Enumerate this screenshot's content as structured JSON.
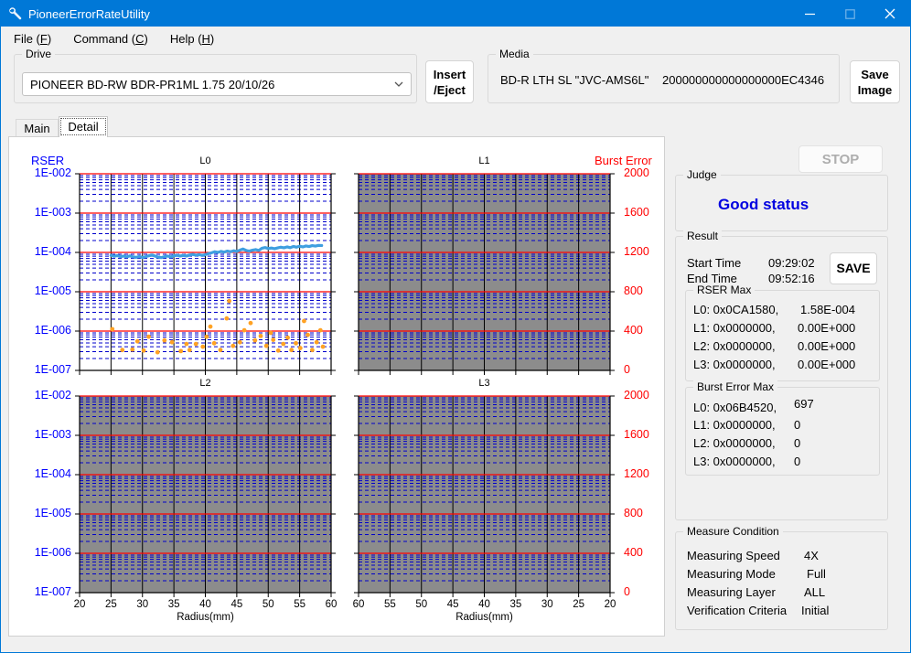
{
  "window": {
    "title": "PioneerErrorRateUtility"
  },
  "menu": {
    "items": [
      {
        "pre": "File (",
        "key": "F",
        "post": ")"
      },
      {
        "pre": "Command (",
        "key": "C",
        "post": ")"
      },
      {
        "pre": "Help (",
        "key": "H",
        "post": ")"
      }
    ]
  },
  "drive": {
    "label": "Drive",
    "selected": "PIONEER BD-RW BDR-PR1ML 1.75 20/10/26"
  },
  "insert_eject_button": {
    "line1": "Insert",
    "line2": "/Eject"
  },
  "media": {
    "label": "Media",
    "type": "BD-R LTH SL \"JVC-AMS6L\"",
    "id": "200000000000000000EC4346"
  },
  "save_image_button": {
    "line1": "Save",
    "line2": "Image"
  },
  "tabs": {
    "main": "Main",
    "detail": "Detail"
  },
  "stop_button": "STOP",
  "judge": {
    "label": "Judge",
    "status": "Good status",
    "status_color": "#0000e0"
  },
  "result": {
    "label": "Result",
    "start_time_label": "Start Time",
    "start_time": "09:29:02",
    "end_time_label": "End Time",
    "end_time": "09:52:16",
    "save_button": "SAVE",
    "rser_max": {
      "label": "RSER Max",
      "rows": [
        {
          "addr": "L0: 0x0CA1580,",
          "val": "1.58E-004"
        },
        {
          "addr": "L1: 0x0000000,",
          "val": "0.00E+000"
        },
        {
          "addr": "L2: 0x0000000,",
          "val": "0.00E+000"
        },
        {
          "addr": "L3: 0x0000000,",
          "val": "0.00E+000"
        }
      ]
    },
    "burst_error_max": {
      "label": "Burst Error Max",
      "rows": [
        {
          "addr": "L0: 0x06B4520,",
          "val": "697"
        },
        {
          "addr": "L1: 0x0000000,",
          "val": "0"
        },
        {
          "addr": "L2: 0x0000000,",
          "val": "0"
        },
        {
          "addr": "L3: 0x0000000,",
          "val": "0"
        }
      ]
    }
  },
  "measure_condition": {
    "label": "Measure Condition",
    "rows": [
      {
        "label": "Measuring Speed",
        "value": "4X"
      },
      {
        "label": "Measuring Mode",
        "value": "Full"
      },
      {
        "label": "Measuring Layer",
        "value": "ALL"
      },
      {
        "label": "Verification Criteria",
        "value": "Initial"
      }
    ]
  },
  "chart_data": {
    "type": "line",
    "grid": {
      "y_label": "RSER",
      "y2_label": "Burst Error",
      "x_label": "Radius(mm)",
      "y_ticks": [
        "1E-002",
        "1E-003",
        "1E-004",
        "1E-005",
        "1E-006",
        "1E-007"
      ],
      "y2_ticks": [
        "2000",
        "1600",
        "1200",
        "800",
        "400",
        "0"
      ],
      "x_ticks_forward": [
        "20",
        "25",
        "30",
        "35",
        "40",
        "45",
        "50",
        "55",
        "60"
      ],
      "x_ticks_reverse": [
        "60",
        "55",
        "50",
        "45",
        "40",
        "35",
        "30",
        "25",
        "20"
      ],
      "x_range": [
        20,
        60
      ],
      "y_log10_range": [
        -7,
        -2
      ],
      "y2_range": [
        0,
        2000
      ]
    },
    "colors": {
      "decade_line": "#ff0000",
      "minor_grid": "#0000cc",
      "vertical_grid": "#000000",
      "measured_bg": "#ffffff",
      "unmeasured_bg": "#8c8c8c",
      "rser_line": "#3f9fe0",
      "error_dots": "#ffa224",
      "axis_blue": "#0000ff",
      "axis_red": "#ff0000"
    },
    "charts": [
      {
        "title": "L0",
        "measured": true,
        "x_ticks": "none",
        "rser_line": {
          "name": "RSER",
          "points": [
            [
              25,
              8.4e-05
            ],
            [
              25.5,
              8e-05
            ],
            [
              26,
              8.3e-05
            ],
            [
              26.5,
              7.8e-05
            ],
            [
              27,
              8.1e-05
            ],
            [
              27.5,
              7.7e-05
            ],
            [
              28,
              8.2e-05
            ],
            [
              28.5,
              7.7e-05
            ],
            [
              29,
              7.5e-05
            ],
            [
              29.5,
              7.9e-05
            ],
            [
              30,
              7.4e-05
            ],
            [
              30.5,
              7.8e-05
            ],
            [
              31,
              8.2e-05
            ],
            [
              31.5,
              8.6e-05
            ],
            [
              32,
              8.1e-05
            ],
            [
              32.5,
              7.6e-05
            ],
            [
              33,
              7.4e-05
            ],
            [
              33.5,
              7.8e-05
            ],
            [
              34,
              8.1e-05
            ],
            [
              34.5,
              7.7e-05
            ],
            [
              35,
              8.2e-05
            ],
            [
              35.5,
              8.5e-05
            ],
            [
              36,
              8.1e-05
            ],
            [
              36.5,
              8.4e-05
            ],
            [
              37,
              8.1e-05
            ],
            [
              37.5,
              8.6e-05
            ],
            [
              38,
              8.9e-05
            ],
            [
              38.5,
              8.5e-05
            ],
            [
              39,
              8.8e-05
            ],
            [
              39.5,
              8.4e-05
            ],
            [
              40,
              8.8e-05
            ],
            [
              40.5,
              9.3e-05
            ],
            [
              41,
              9.8e-05
            ],
            [
              41.5,
              0.000104
            ],
            [
              42,
              0.0001
            ],
            [
              42.5,
              0.000106
            ],
            [
              43,
              0.000102
            ],
            [
              43.5,
              0.000108
            ],
            [
              44,
              0.000104
            ],
            [
              44.5,
              0.00011
            ],
            [
              45,
              0.000106
            ],
            [
              45.5,
              0.000114
            ],
            [
              46,
              0.000122
            ],
            [
              46.5,
              0.000112
            ],
            [
              47,
              0.000108
            ],
            [
              47.5,
              0.000114
            ],
            [
              48,
              0.000118
            ],
            [
              48.5,
              0.000112
            ],
            [
              49,
              0.000128
            ],
            [
              49.5,
              0.000133
            ],
            [
              50,
              0.000126
            ],
            [
              50.5,
              0.000129
            ],
            [
              51,
              0.000124
            ],
            [
              51.5,
              0.00013
            ],
            [
              52,
              0.000136
            ],
            [
              52.5,
              0.000131
            ],
            [
              53,
              0.000138
            ],
            [
              53.5,
              0.000132
            ],
            [
              54,
              0.000142
            ],
            [
              54.5,
              0.000136
            ],
            [
              55,
              0.000144
            ],
            [
              55.5,
              0.000138
            ],
            [
              56,
              0.000146
            ],
            [
              56.5,
              0.000141
            ],
            [
              57,
              0.000149
            ],
            [
              57.5,
              0.000145
            ],
            [
              58,
              0.000151
            ],
            [
              58.5,
              0.00015
            ]
          ]
        },
        "error_dots": {
          "name": "Burst",
          "points": [
            [
              25.2,
              1.12e-06
            ],
            [
              26.8,
              3.3e-07
            ],
            [
              28.4,
              3.4e-07
            ],
            [
              29.2,
              5.5e-07
            ],
            [
              30.2,
              3.2e-07
            ],
            [
              31.0,
              7.2e-07
            ],
            [
              32.4,
              2.9e-07
            ],
            [
              33.5,
              5.8e-07
            ],
            [
              34.7,
              5.2e-07
            ],
            [
              36.1,
              3.1e-07
            ],
            [
              37.0,
              4.7e-07
            ],
            [
              37.5,
              3.3e-07
            ],
            [
              38.5,
              4.7e-07
            ],
            [
              39.6,
              4e-07
            ],
            [
              40.2,
              7.2e-07
            ],
            [
              40.8,
              1.3e-06
            ],
            [
              41.4,
              4.9e-07
            ],
            [
              42.4,
              3.3e-07
            ],
            [
              43.4,
              2.1e-06
            ],
            [
              43.8,
              5.8e-06
            ],
            [
              44.4,
              4.2e-07
            ],
            [
              45.5,
              5.2e-07
            ],
            [
              46.2,
              1.05e-06
            ],
            [
              47.2,
              1.6e-06
            ],
            [
              47.9,
              5.8e-07
            ],
            [
              48.8,
              7.5e-07
            ],
            [
              49.7,
              4.2e-07
            ],
            [
              50.4,
              9e-07
            ],
            [
              50.8,
              6e-07
            ],
            [
              51.6,
              3.2e-07
            ],
            [
              52.4,
              4.7e-07
            ],
            [
              53.1,
              6.8e-07
            ],
            [
              53.7,
              3.3e-07
            ],
            [
              54.4,
              4.9e-07
            ],
            [
              55.1,
              3.7e-07
            ],
            [
              55.7,
              1.8e-06
            ],
            [
              56.3,
              8e-07
            ],
            [
              57.0,
              3.3e-07
            ],
            [
              57.7,
              5.2e-07
            ],
            [
              58.3,
              1.05e-06
            ],
            [
              58.7,
              4e-07
            ]
          ]
        }
      },
      {
        "title": "L1",
        "measured": false,
        "x_ticks": "none"
      },
      {
        "title": "L2",
        "measured": false,
        "x_ticks": "forward"
      },
      {
        "title": "L3",
        "measured": false,
        "x_ticks": "reverse"
      }
    ]
  }
}
